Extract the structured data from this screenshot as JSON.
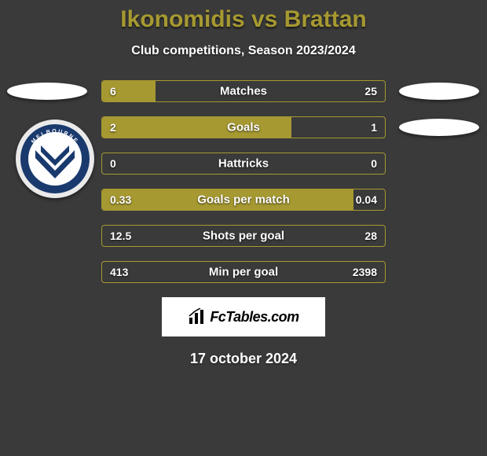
{
  "title_color": "#a69931",
  "title": "Ikonomidis vs Brattan",
  "subtitle": "Club competitions, Season 2023/2024",
  "crest": {
    "outer_ring": "#1a3a6e",
    "inner_bg": "#ffffff",
    "chevron": "#1a3a6e",
    "text": "MELBOURNE",
    "sub": "VICTORY"
  },
  "branding": "FcTables.com",
  "date": "17 october 2024",
  "bars": [
    {
      "key": "matches",
      "label": "Matches",
      "left": "6",
      "right": "25",
      "border": "#a69931",
      "fill": "#a69931",
      "fill_pct": 19
    },
    {
      "key": "goals",
      "label": "Goals",
      "left": "2",
      "right": "1",
      "border": "#a69931",
      "fill": "#a69931",
      "fill_pct": 67
    },
    {
      "key": "hattricks",
      "label": "Hattricks",
      "left": "0",
      "right": "0",
      "border": "#a69931",
      "fill": "#a69931",
      "fill_pct": 0
    },
    {
      "key": "goals-per-match",
      "label": "Goals per match",
      "left": "0.33",
      "right": "0.04",
      "border": "#a69931",
      "fill": "#a69931",
      "fill_pct": 89
    },
    {
      "key": "shots-per-goal",
      "label": "Shots per goal",
      "left": "12.5",
      "right": "28",
      "border": "#a69931",
      "fill": "#a69931",
      "fill_pct": 0
    },
    {
      "key": "min-per-goal",
      "label": "Min per goal",
      "left": "413",
      "right": "2398",
      "border": "#a69931",
      "fill": "#a69931",
      "fill_pct": 0
    }
  ]
}
